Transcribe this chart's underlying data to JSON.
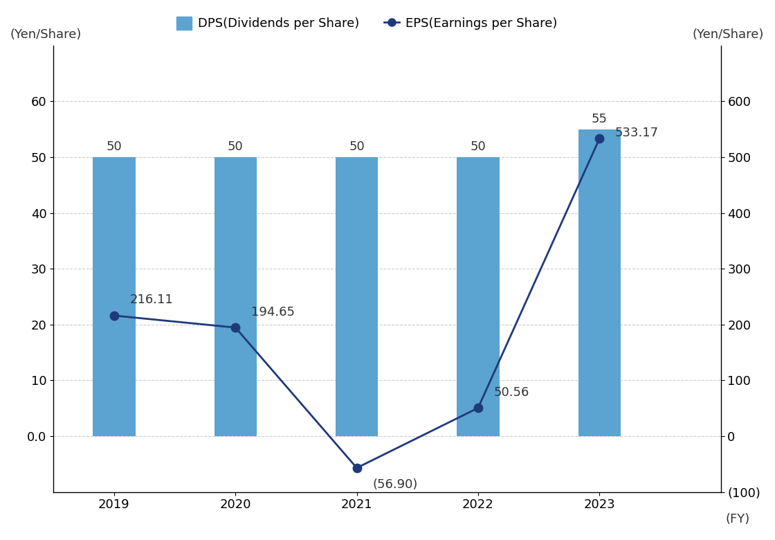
{
  "years": [
    2019,
    2020,
    2021,
    2022,
    2023
  ],
  "dps": [
    50,
    50,
    50,
    50,
    55
  ],
  "eps": [
    216.11,
    194.65,
    -56.9,
    50.56,
    533.17
  ],
  "eps_labels": [
    "216.11",
    "194.65",
    "(56.90)",
    "50.56",
    "533.17"
  ],
  "dps_labels": [
    "50",
    "50",
    "50",
    "50",
    "55"
  ],
  "bar_color": "#5BA3D0",
  "line_color": "#1F3A7A",
  "marker_color": "#1F3A7A",
  "background_color": "#FFFFFF",
  "left_ylabel": "(Yen/Share)",
  "right_ylabel": "(Yen/Share)",
  "xlabel_fy": "(FY)",
  "legend_dps": "DPS(Dividends per Share)",
  "legend_eps": "EPS(Earnings per Share)",
  "left_ylim": [
    -10,
    70
  ],
  "right_ylim": [
    -100,
    700
  ],
  "left_yticks": [
    0.0,
    10,
    20,
    30,
    40,
    50,
    60
  ],
  "right_yticks": [
    -100,
    0,
    100,
    200,
    300,
    400,
    500,
    600
  ],
  "right_yticklabels": [
    "(100)",
    "0",
    "100",
    "200",
    "300",
    "400",
    "500",
    "600"
  ],
  "left_yticklabels": [
    "0.0",
    "10",
    "20",
    "30",
    "40",
    "50",
    "60"
  ],
  "grid_color": "#CCCCCC",
  "label_fontsize": 13,
  "tick_fontsize": 13,
  "bar_width": 0.35
}
